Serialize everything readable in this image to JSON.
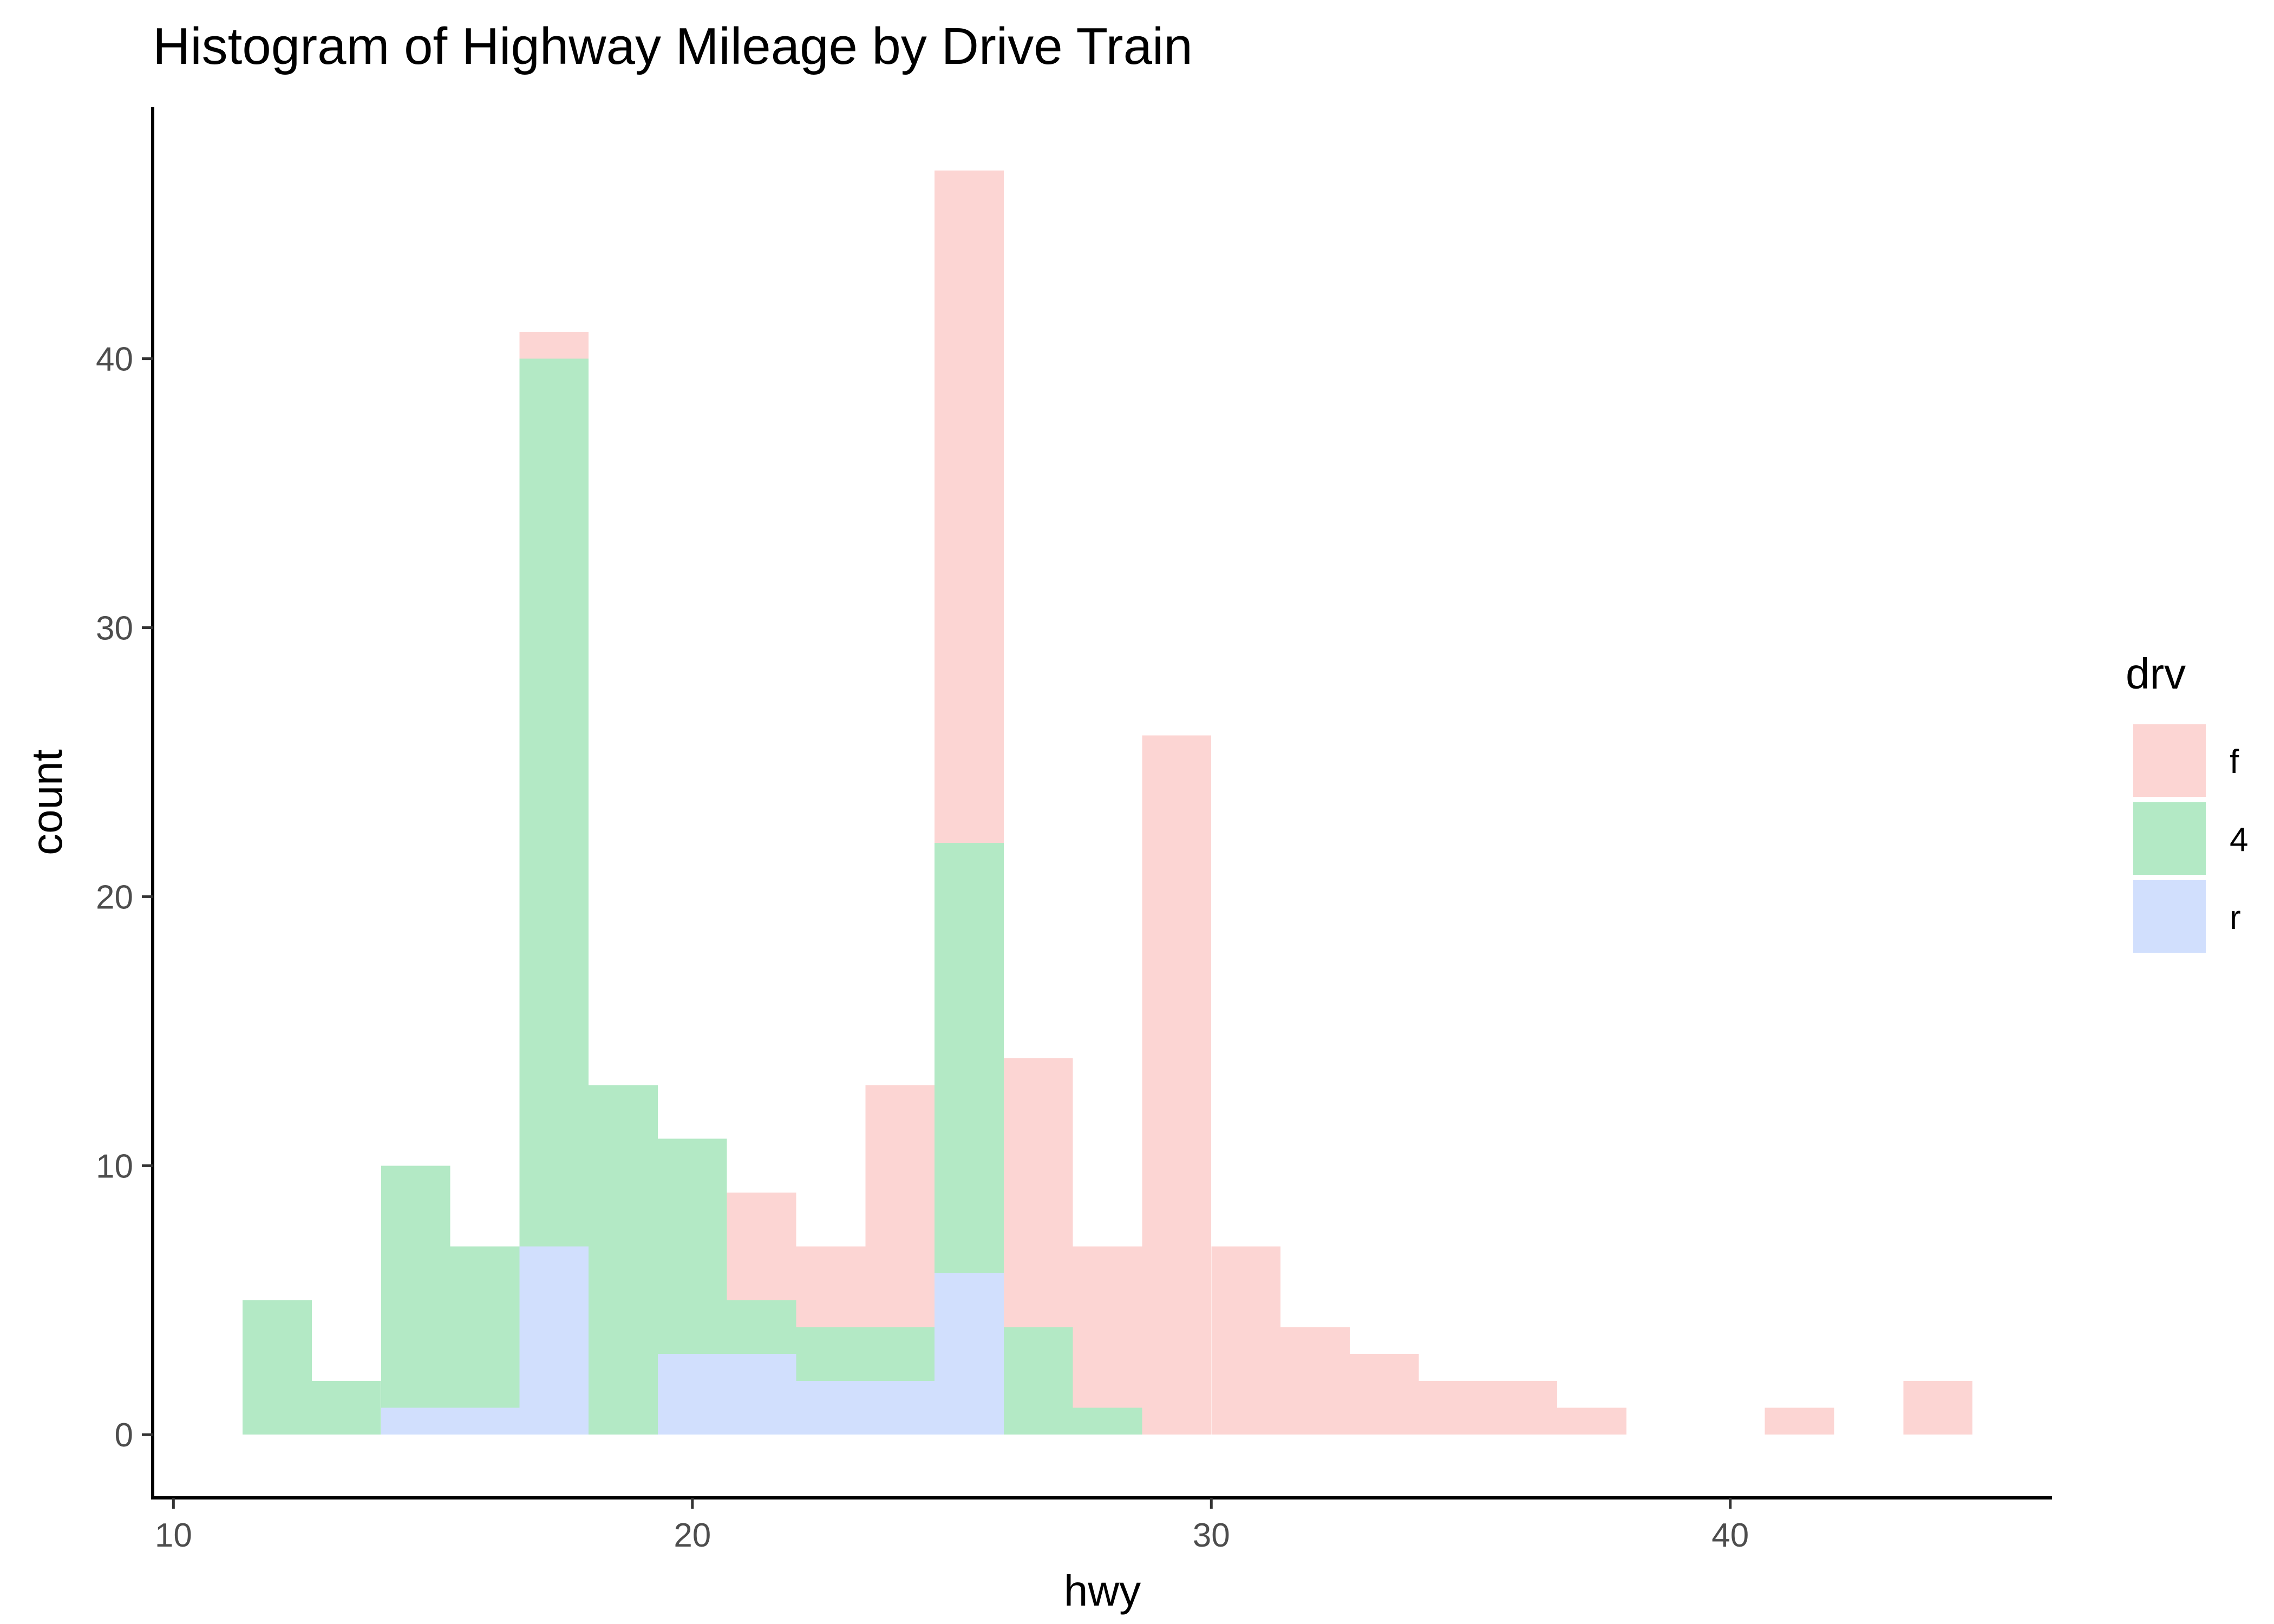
{
  "chart_data": {
    "type": "bar",
    "subtype": "stacked-histogram",
    "title": "Histogram of Highway Mileage by Drive Train",
    "xlabel": "hwy",
    "ylabel": "count",
    "xlim": [
      9.6,
      46.2
    ],
    "ylim": [
      -2.35,
      49.35
    ],
    "x_ticks": [
      10,
      20,
      30,
      40
    ],
    "x_tick_labels": [
      "10",
      "20",
      "30",
      "40"
    ],
    "y_ticks": [
      0,
      10,
      20,
      30,
      40
    ],
    "y_tick_labels": [
      "0",
      "10",
      "20",
      "30",
      "40"
    ],
    "grid": false,
    "legend": {
      "title": "drv",
      "position": "right"
    },
    "bin_width": 1.333,
    "bin_centers": [
      12.0,
      13.333,
      14.667,
      16.0,
      17.333,
      18.667,
      20.0,
      21.333,
      22.667,
      24.0,
      25.333,
      26.667,
      28.0,
      29.333,
      30.667,
      32.0,
      33.333,
      34.667,
      36.0,
      37.333,
      38.667,
      40.0,
      41.333,
      42.667,
      44.0
    ],
    "series": [
      {
        "name": "f",
        "color": "#fcd5d3",
        "values": [
          0,
          0,
          0,
          0,
          1,
          0,
          0,
          4,
          3,
          9,
          25,
          10,
          6,
          26,
          7,
          4,
          3,
          2,
          2,
          1,
          0,
          0,
          1,
          0,
          2
        ]
      },
      {
        "name": "4",
        "color": "#b3e9c5",
        "values": [
          5,
          2,
          9,
          6,
          33,
          13,
          8,
          2,
          2,
          2,
          16,
          4,
          1,
          0,
          0,
          0,
          0,
          0,
          0,
          0,
          0,
          0,
          0,
          0,
          0
        ]
      },
      {
        "name": "r",
        "color": "#d1dffd",
        "values": [
          0,
          0,
          1,
          1,
          7,
          0,
          3,
          3,
          2,
          2,
          6,
          0,
          0,
          0,
          0,
          0,
          0,
          0,
          0,
          0,
          0,
          0,
          0,
          0,
          0
        ]
      }
    ]
  }
}
